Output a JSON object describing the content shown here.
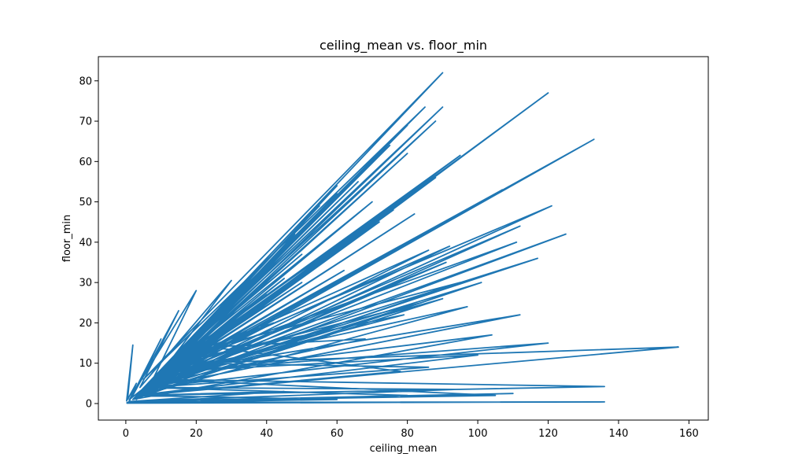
{
  "chart_data": {
    "type": "line",
    "title": "ceiling_mean vs. floor_min",
    "xlabel": "ceiling_mean",
    "ylabel": "floor_min",
    "xlim": [
      -7.8,
      165.5
    ],
    "ylim": [
      -4.1,
      86
    ],
    "xticks": [
      0,
      20,
      40,
      60,
      80,
      100,
      120,
      140,
      160
    ],
    "yticks": [
      0,
      10,
      20,
      30,
      40,
      50,
      60,
      70,
      80
    ],
    "grid": false,
    "color": "#1f77b4",
    "series": [
      {
        "x": [
          0.2,
          2,
          0.5,
          3,
          0.8,
          10,
          2,
          15,
          4,
          30,
          6,
          20,
          1,
          45,
          8,
          60,
          3,
          90,
          5,
          85,
          2,
          90,
          7,
          88,
          3,
          95,
          10,
          92,
          6,
          80,
          4,
          60,
          12,
          70,
          5,
          66,
          3,
          75,
          9,
          55,
          2,
          80,
          14,
          48,
          6,
          88,
          11,
          92,
          4,
          72,
          8,
          50,
          16,
          95,
          5,
          76,
          10,
          104,
          2,
          101,
          7,
          91,
          3,
          86,
          12,
          84,
          6,
          82,
          18,
          79,
          9,
          90,
          4,
          97,
          13,
          112,
          7,
          120,
          3,
          121,
          15,
          111,
          8,
          125,
          5,
          107,
          11,
          117,
          6,
          133,
          2,
          112,
          10,
          136,
          4,
          157,
          20,
          86,
          7,
          120,
          13,
          100,
          3,
          78,
          24,
          68,
          9,
          58,
          5,
          35,
          17,
          42,
          6,
          28,
          12,
          40,
          3,
          22,
          8,
          33,
          2,
          26,
          15,
          50,
          7,
          62,
          4,
          38,
          10,
          105,
          1,
          94,
          6,
          80,
          0.3,
          60,
          3,
          45,
          1,
          110,
          0.5,
          136,
          0.2
        ],
        "y": [
          0.5,
          14.5,
          1,
          5,
          0.3,
          16,
          2,
          23,
          4,
          30.5,
          3,
          28,
          1,
          31,
          5,
          52,
          2,
          82,
          6,
          73.5,
          1,
          73.5,
          4,
          70,
          2,
          61.5,
          8,
          59,
          3,
          62,
          2,
          54,
          9,
          50,
          3,
          55,
          1,
          64,
          7,
          49,
          1,
          69,
          10,
          42,
          3,
          56,
          8,
          39,
          2,
          45,
          6,
          37,
          12,
          30,
          3,
          48,
          7,
          17,
          1,
          30,
          5,
          35,
          2,
          38,
          9,
          25,
          4,
          47,
          11,
          22,
          6,
          26,
          2,
          24,
          8,
          22,
          4,
          77,
          2,
          49,
          10,
          40,
          5,
          42,
          3,
          53,
          7,
          36,
          4,
          65.5,
          1,
          44,
          6,
          4.2,
          2,
          14,
          10,
          9,
          4,
          15,
          8,
          12,
          2,
          8,
          14,
          16,
          5,
          17,
          3,
          22,
          12,
          20,
          4,
          25,
          8,
          27,
          2,
          16,
          5,
          18,
          1,
          14,
          10,
          30,
          5,
          33,
          3,
          24,
          6,
          2,
          0.5,
          3.5,
          4,
          2,
          0.2,
          1,
          2,
          3,
          0.5,
          2.5,
          0.3,
          0.4,
          0.1
        ]
      }
    ]
  }
}
